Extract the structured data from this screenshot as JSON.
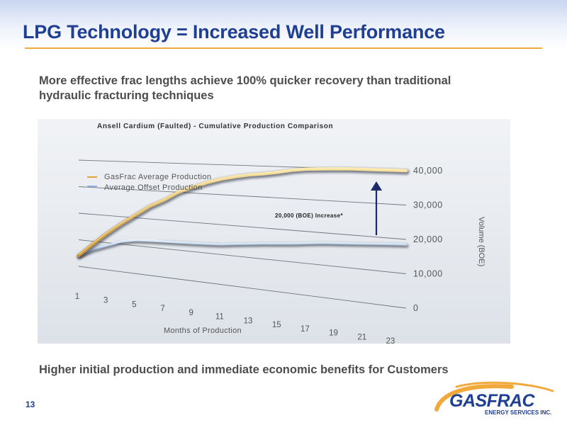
{
  "slide": {
    "title": "LPG Technology = Increased Well Performance",
    "subtitle": "More effective frac lengths achieve 100% quicker recovery than traditional hydraulic fracturing techniques",
    "caption": "Higher initial production and immediate economic benefits for Customers",
    "page_number": "13"
  },
  "logo": {
    "name": "GASFRAC",
    "tagline": "ENERGY SERVICES INC.",
    "colors": {
      "navy": "#1f3f93",
      "orange": "#f2a93b"
    }
  },
  "chart_data": {
    "type": "line",
    "title": "Ansell Cardium (Faulted) - Cumulative Production Comparison",
    "xlabel": "Months of Production",
    "ylabel": "Volume (BOE)",
    "x_ticks": [
      1,
      3,
      5,
      7,
      9,
      11,
      13,
      15,
      17,
      19,
      21,
      23
    ],
    "y_ticks": [
      "0",
      "10,000",
      "20,000",
      "30,000",
      "40,000"
    ],
    "ylim": [
      0,
      40000
    ],
    "xlim": [
      1,
      24
    ],
    "grid": true,
    "legend_position": "top-left",
    "annotation": "20,000 (BOE) Increase*",
    "series": [
      {
        "name": "GasFrac Average Production",
        "color": "#e0b04a",
        "x": [
          1,
          2,
          3,
          4,
          5,
          6,
          7,
          8,
          9,
          10,
          11,
          12,
          13,
          14,
          15,
          16,
          17,
          18,
          19,
          20,
          21,
          22,
          23,
          24
        ],
        "values": [
          4000,
          9000,
          13500,
          17500,
          21000,
          24500,
          27000,
          30000,
          32000,
          33800,
          35200,
          36200,
          37000,
          37500,
          38200,
          39000,
          39500,
          39700,
          39900,
          40000,
          40000,
          40000,
          40000,
          40000
        ]
      },
      {
        "name": "Average Offset Production",
        "color": "#8fb3dc",
        "x": [
          1,
          2,
          3,
          4,
          5,
          6,
          7,
          8,
          9,
          10,
          11,
          12,
          13,
          14,
          15,
          16,
          17,
          18,
          19,
          20,
          21,
          22,
          23,
          24
        ],
        "values": [
          4000,
          7000,
          9000,
          11000,
          12000,
          12300,
          12500,
          12700,
          12900,
          13100,
          13400,
          14000,
          14500,
          15000,
          15400,
          15800,
          16300,
          16800,
          17100,
          17400,
          17700,
          18000,
          18300,
          18500
        ]
      }
    ]
  }
}
